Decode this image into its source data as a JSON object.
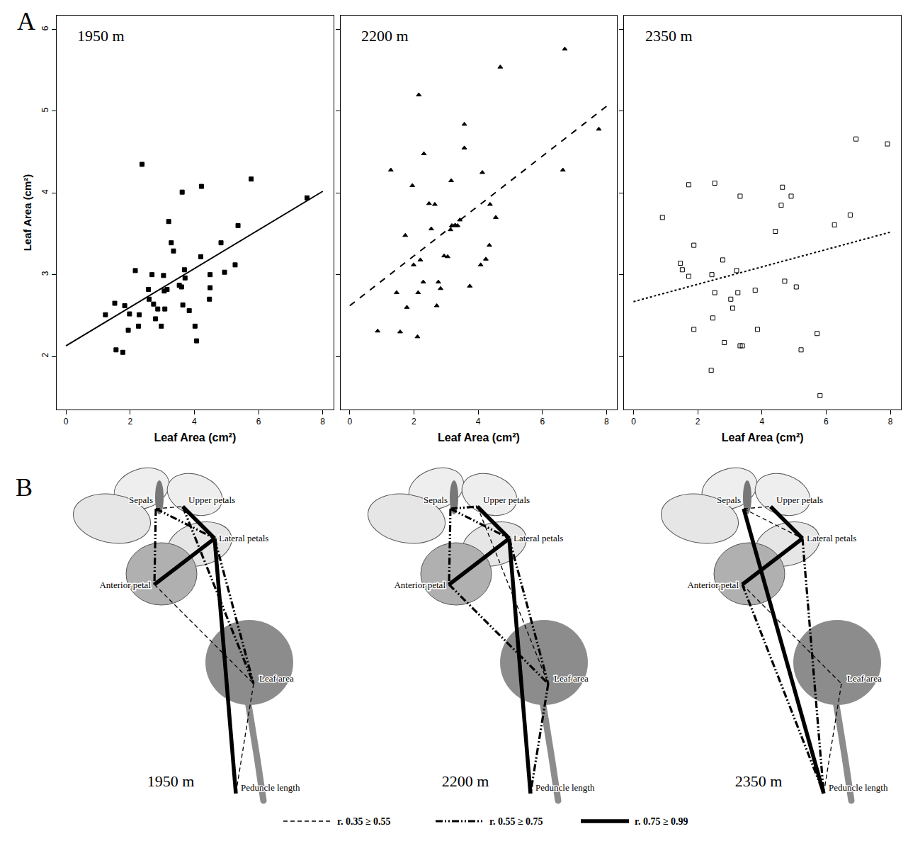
{
  "panel_a": {
    "letter": "A"
  },
  "chart_data": [
    {
      "type": "scatter",
      "title": "1950 m",
      "x_label": "Leaf Area (cm²)",
      "y_label": "Leaf Area (cm²)",
      "xlim": [
        -0.29,
        8.33
      ],
      "ylim": [
        1.35,
        6.17
      ],
      "xticks": [
        0,
        2,
        4,
        6,
        8
      ],
      "yticks": [
        2,
        3,
        4,
        5,
        6
      ],
      "grid": false,
      "marker": "square",
      "line_style": "solid",
      "x": [
        1.23,
        1.56,
        1.52,
        1.77,
        1.83,
        1.94,
        1.98,
        2.16,
        2.26,
        2.28,
        2.37,
        2.57,
        2.59,
        2.68,
        2.73,
        2.79,
        2.86,
        2.97,
        3.04,
        3.08,
        3.06,
        3.15,
        3.2,
        3.28,
        3.35,
        3.53,
        3.6,
        3.62,
        3.64,
        3.69,
        3.71,
        3.84,
        4.02,
        4.07,
        4.2,
        4.22,
        4.49,
        4.49,
        4.47,
        4.83,
        4.94,
        5.27,
        5.36,
        5.77,
        7.51
      ],
      "values": [
        2.51,
        2.08,
        2.65,
        2.05,
        2.62,
        2.32,
        2.52,
        3.05,
        2.37,
        2.51,
        4.35,
        2.82,
        2.7,
        3.0,
        2.64,
        2.46,
        2.58,
        2.37,
        2.99,
        2.58,
        2.8,
        2.82,
        3.65,
        3.39,
        3.29,
        2.87,
        2.85,
        4.01,
        2.63,
        3.06,
        2.96,
        2.56,
        2.37,
        2.19,
        3.22,
        4.08,
        3.0,
        2.84,
        2.7,
        3.39,
        3.03,
        3.12,
        3.6,
        4.17,
        3.94
      ],
      "regression_line": {
        "x": [
          0,
          8
        ],
        "values": [
          2.13,
          4.02
        ]
      }
    },
    {
      "type": "scatter",
      "title": "2200 m",
      "x_label": "Leaf Area (cm²)",
      "xlim": [
        -0.29,
        8.33
      ],
      "ylim": [
        1.35,
        6.17
      ],
      "xticks": [
        0,
        2,
        4,
        6,
        8
      ],
      "yticks": [
        2,
        3,
        4,
        5,
        6
      ],
      "grid": false,
      "tick_labels": "x",
      "marker": "triangle",
      "line_style": "dashed",
      "x": [
        0.87,
        1.28,
        1.57,
        1.46,
        1.73,
        1.78,
        1.95,
        1.99,
        2.11,
        2.15,
        2.13,
        2.2,
        2.31,
        2.29,
        2.47,
        2.54,
        2.65,
        2.71,
        2.76,
        2.83,
        2.94,
        3.05,
        3.14,
        3.16,
        3.18,
        3.3,
        3.36,
        3.43,
        3.57,
        3.57,
        3.74,
        4.08,
        4.13,
        4.24,
        4.35,
        4.37,
        4.55,
        4.69,
        6.7,
        6.64,
        7.76
      ],
      "values": [
        2.31,
        4.28,
        2.3,
        2.78,
        3.48,
        2.6,
        4.09,
        3.12,
        2.24,
        5.2,
        2.78,
        3.18,
        4.48,
        2.91,
        3.87,
        3.56,
        3.86,
        2.62,
        2.91,
        2.83,
        3.23,
        3.22,
        3.55,
        4.15,
        3.6,
        3.6,
        3.6,
        3.67,
        4.84,
        4.55,
        2.86,
        3.12,
        4.25,
        3.19,
        3.36,
        3.86,
        3.7,
        5.54,
        5.76,
        4.28,
        4.78
      ],
      "regression_line": {
        "x": [
          0,
          8
        ],
        "values": [
          2.62,
          5.06
        ]
      }
    },
    {
      "type": "scatter",
      "title": "2350 m",
      "x_label": "Leaf Area (cm²)",
      "xlim": [
        -0.29,
        8.33
      ],
      "ylim": [
        1.35,
        6.17
      ],
      "xticks": [
        0,
        2,
        4,
        6,
        8
      ],
      "yticks": [
        2,
        3,
        4,
        5,
        6
      ],
      "grid": false,
      "tick_labels": "x",
      "marker": "open square",
      "line_style": "dotted",
      "x": [
        0.9,
        1.46,
        1.52,
        1.72,
        1.72,
        1.88,
        1.88,
        2.42,
        2.44,
        2.47,
        2.53,
        2.53,
        2.78,
        2.83,
        3.03,
        3.09,
        3.21,
        3.25,
        3.32,
        3.32,
        3.39,
        3.79,
        3.86,
        4.42,
        4.6,
        4.64,
        4.71,
        4.91,
        5.07,
        5.22,
        5.72,
        5.81,
        6.26,
        6.75,
        6.93,
        7.91
      ],
      "values": [
        3.7,
        3.14,
        3.06,
        4.1,
        2.98,
        3.36,
        2.33,
        1.83,
        3.0,
        2.47,
        4.12,
        2.78,
        3.18,
        2.17,
        2.7,
        2.59,
        3.05,
        2.78,
        3.96,
        2.13,
        2.13,
        2.81,
        2.33,
        3.53,
        3.85,
        4.07,
        2.92,
        3.96,
        2.85,
        2.08,
        2.28,
        1.52,
        3.61,
        3.73,
        4.66,
        4.6
      ],
      "regression_line": {
        "x": [
          0,
          8
        ],
        "values": [
          2.67,
          3.52
        ]
      }
    }
  ],
  "diagram": {
    "letter": "B",
    "nodes": [
      "Sepals",
      "Upper petals",
      "Lateral petals",
      "Anterior petal",
      "Leaf area",
      "Peduncle length"
    ],
    "panels": [
      {
        "title": "1950 m",
        "edges": [
          {
            "from": "Upper petals",
            "to": "Lateral petals",
            "line_style": "solid"
          },
          {
            "from": "Lateral petals",
            "to": "Anterior petal",
            "line_style": "solid"
          },
          {
            "from": "Sepals",
            "to": "Anterior petal",
            "line_style": "dashdot"
          },
          {
            "from": "Sepals",
            "to": "Lateral petals",
            "line_style": "dashdot"
          },
          {
            "from": "Sepals",
            "to": "Upper petals",
            "line_style": "dashed"
          },
          {
            "from": "Lateral petals",
            "to": "Peduncle length",
            "line_style": "solid"
          },
          {
            "from": "Lateral petals",
            "to": "Leaf area",
            "line_style": "dashdot"
          },
          {
            "from": "Upper petals",
            "to": "Leaf area",
            "line_style": "dashdot"
          },
          {
            "from": "Anterior petal",
            "to": "Leaf area",
            "line_style": "dashed"
          },
          {
            "from": "Leaf area",
            "to": "Peduncle length",
            "line_style": "dashed"
          }
        ]
      },
      {
        "title": "2200 m",
        "edges": [
          {
            "from": "Upper petals",
            "to": "Lateral petals",
            "line_style": "solid"
          },
          {
            "from": "Lateral petals",
            "to": "Anterior petal",
            "line_style": "solid"
          },
          {
            "from": "Sepals",
            "to": "Anterior petal",
            "line_style": "dashdot"
          },
          {
            "from": "Sepals",
            "to": "Lateral petals",
            "line_style": "dashdot"
          },
          {
            "from": "Sepals",
            "to": "Upper petals",
            "line_style": "dashdot"
          },
          {
            "from": "Lateral petals",
            "to": "Peduncle length",
            "line_style": "solid"
          },
          {
            "from": "Anterior petal",
            "to": "Leaf area",
            "line_style": "dashdot"
          },
          {
            "from": "Lateral petals",
            "to": "Leaf area",
            "line_style": "dashdot"
          },
          {
            "from": "Leaf area",
            "to": "Peduncle length",
            "line_style": "dashdot"
          },
          {
            "from": "Upper petals",
            "to": "Leaf area",
            "line_style": "dashed"
          }
        ]
      },
      {
        "title": "2350 m",
        "edges": [
          {
            "from": "Upper petals",
            "to": "Lateral petals",
            "line_style": "solid"
          },
          {
            "from": "Lateral petals",
            "to": "Anterior petal",
            "line_style": "solid"
          },
          {
            "from": "Sepals",
            "to": "Upper petals",
            "line_style": "dashed"
          },
          {
            "from": "Sepals",
            "to": "Lateral petals",
            "line_style": "dashed"
          },
          {
            "from": "Anterior petal",
            "to": "Peduncle length",
            "line_style": "dashdot"
          },
          {
            "from": "Lateral petals",
            "to": "Peduncle length",
            "line_style": "dashdot"
          },
          {
            "from": "Sepals",
            "to": "Peduncle length",
            "line_style": "solid"
          },
          {
            "from": "Anterior petal",
            "to": "Leaf area",
            "line_style": "dashed"
          },
          {
            "from": "Leaf area",
            "to": "Peduncle length",
            "line_style": "dashed"
          }
        ]
      }
    ],
    "legend": [
      {
        "label": "r. 0.35 ≥ 0.55",
        "line_style": "dashed"
      },
      {
        "label": "r. 0.55 ≥ 0.75",
        "line_style": "dashdot"
      },
      {
        "label": "r. 0.75 ≥ 0.99",
        "line_style": "solid"
      }
    ]
  }
}
